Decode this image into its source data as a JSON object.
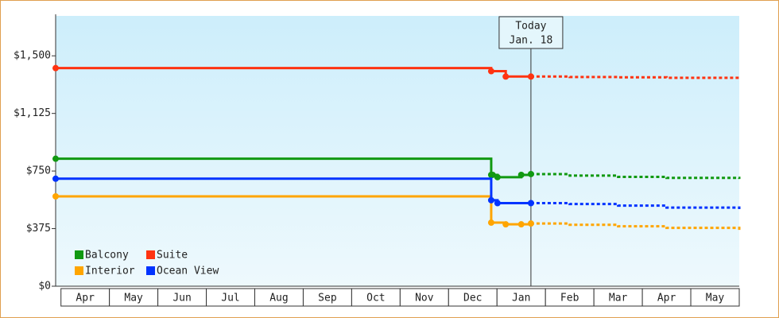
{
  "chart_data": {
    "type": "step-line",
    "xlim": [
      -0.11,
      14
    ],
    "ylim": [
      0,
      1760
    ],
    "yticks": [
      {
        "value": 0,
        "label": "$0"
      },
      {
        "value": 375,
        "label": "$375"
      },
      {
        "value": 750,
        "label": "$750"
      },
      {
        "value": 1125,
        "label": "$1,125"
      },
      {
        "value": 1500,
        "label": "$1,500"
      }
    ],
    "xticks": [
      {
        "value": 0,
        "label": "Apr"
      },
      {
        "value": 1,
        "label": "May"
      },
      {
        "value": 2,
        "label": "Jun"
      },
      {
        "value": 3,
        "label": "Jul"
      },
      {
        "value": 4,
        "label": "Aug"
      },
      {
        "value": 5,
        "label": "Sep"
      },
      {
        "value": 6,
        "label": "Oct"
      },
      {
        "value": 7,
        "label": "Nov"
      },
      {
        "value": 8,
        "label": "Dec"
      },
      {
        "value": 9,
        "label": "Jan"
      },
      {
        "value": 10,
        "label": "Feb"
      },
      {
        "value": 11,
        "label": "Mar"
      },
      {
        "value": 12,
        "label": "Apr"
      },
      {
        "value": 13,
        "label": "May"
      }
    ],
    "today": {
      "x": 9.7,
      "label": [
        "Today",
        "Jan. 18"
      ]
    },
    "series": [
      {
        "name": "Balcony",
        "color": "#119911",
        "x": [
          -0.11,
          8.88,
          8.91,
          9.01,
          9.5,
          9.7,
          10.5,
          11.5,
          12.5,
          14
        ],
        "values": [
          830,
          725,
          725,
          710,
          725,
          730,
          720,
          712,
          705,
          698
        ]
      },
      {
        "name": "Suite",
        "color": "#ff3311",
        "x": [
          -0.11,
          8.88,
          9.18,
          9.7,
          10.5,
          11.5,
          12.5,
          14
        ],
        "values": [
          1420,
          1400,
          1365,
          1365,
          1362,
          1360,
          1357,
          1355
        ]
      },
      {
        "name": "Interior",
        "color": "#ffa500",
        "x": [
          -0.11,
          8.88,
          9.18,
          9.5,
          9.7,
          10.5,
          11.5,
          12.5,
          14
        ],
        "values": [
          585,
          414,
          403,
          403,
          408,
          400,
          390,
          380,
          367
        ]
      },
      {
        "name": "Ocean View",
        "color": "#0033ff",
        "x": [
          -0.11,
          8.88,
          9.01,
          9.7,
          10.5,
          11.5,
          12.5,
          14
        ],
        "values": [
          700,
          560,
          541,
          541,
          535,
          525,
          512,
          502
        ]
      }
    ]
  }
}
